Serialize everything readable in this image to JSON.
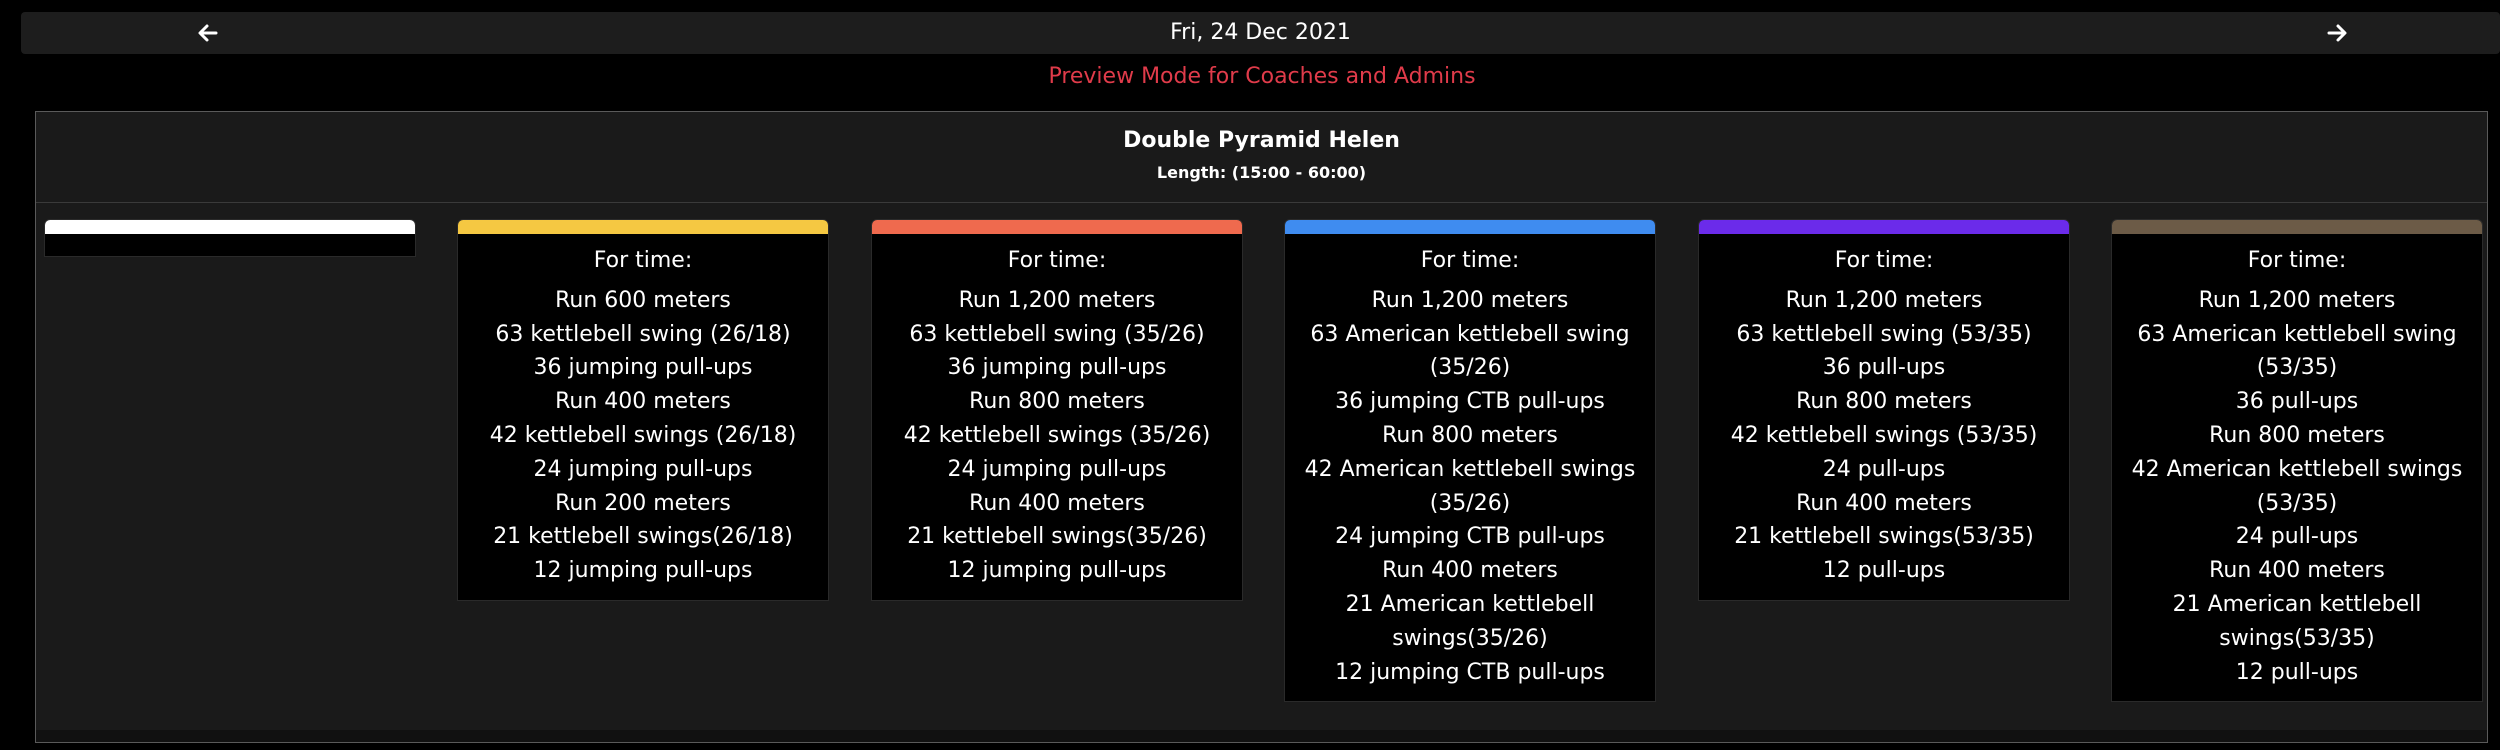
{
  "nav": {
    "date": "Fri, 24 Dec 2021",
    "prev_icon": "arrow-left-icon",
    "next_icon": "arrow-right-icon"
  },
  "notice": "Preview Mode for Coaches and Admins",
  "workout": {
    "title": "Double Pyramid Helen",
    "length": "Length: (15:00 - 60:00)"
  },
  "colors": {
    "white": "#ffffff",
    "yellow": "#f5c842",
    "orange": "#ef6a4e",
    "blue": "#3f8cf0",
    "purple": "#6b2bea",
    "brown": "#6c5b47",
    "notice": "#e03b4a"
  },
  "tracks": [
    {
      "color": "#ffffff",
      "heading": "",
      "lines": []
    },
    {
      "color": "#f5c842",
      "heading": "For time:",
      "lines": [
        "Run 600 meters",
        "63 kettlebell swing (26/18)",
        "36 jumping pull-ups",
        "Run 400 meters",
        "42 kettlebell swings (26/18)",
        "24 jumping pull-ups",
        "Run 200 meters",
        "21 kettlebell swings(26/18)",
        "12 jumping pull-ups"
      ]
    },
    {
      "color": "#ef6a4e",
      "heading": "For time:",
      "lines": [
        "Run 1,200 meters",
        "63 kettlebell swing (35/26)",
        "36 jumping pull-ups",
        "Run 800 meters",
        "42 kettlebell swings (35/26)",
        "24 jumping  pull-ups",
        "Run 400 meters",
        "21 kettlebell swings(35/26)",
        "12 jumping  pull-ups"
      ]
    },
    {
      "color": "#3f8cf0",
      "heading": "For time:",
      "lines": [
        "Run 1,200 meters",
        "63 American kettlebell swing (35/26)",
        "36 jumping CTB pull-ups",
        "Run 800 meters",
        "42 American kettlebell swings (35/26)",
        "24 jumping CTB pull-ups",
        "Run 400 meters",
        "21 American kettlebell swings(35/26)",
        "12 jumping CTB pull-ups"
      ]
    },
    {
      "color": "#6b2bea",
      "heading": "For time:",
      "lines": [
        "Run 1,200 meters",
        "63 kettlebell swing (53/35)",
        "36 pull-ups",
        "Run 800 meters",
        "42 kettlebell swings (53/35)",
        "24 pull-ups",
        "Run 400 meters",
        "21 kettlebell swings(53/35)",
        "12 pull-ups"
      ]
    },
    {
      "color": "#6c5b47",
      "heading": "For time:",
      "lines": [
        "Run 1,200 meters",
        "63 American kettlebell swing (53/35)",
        "36 pull-ups",
        "Run 800 meters",
        "42 American kettlebell swings (53/35)",
        "24 pull-ups",
        "Run 400 meters",
        "21 American kettlebell swings(53/35)",
        "12 pull-ups"
      ]
    }
  ]
}
